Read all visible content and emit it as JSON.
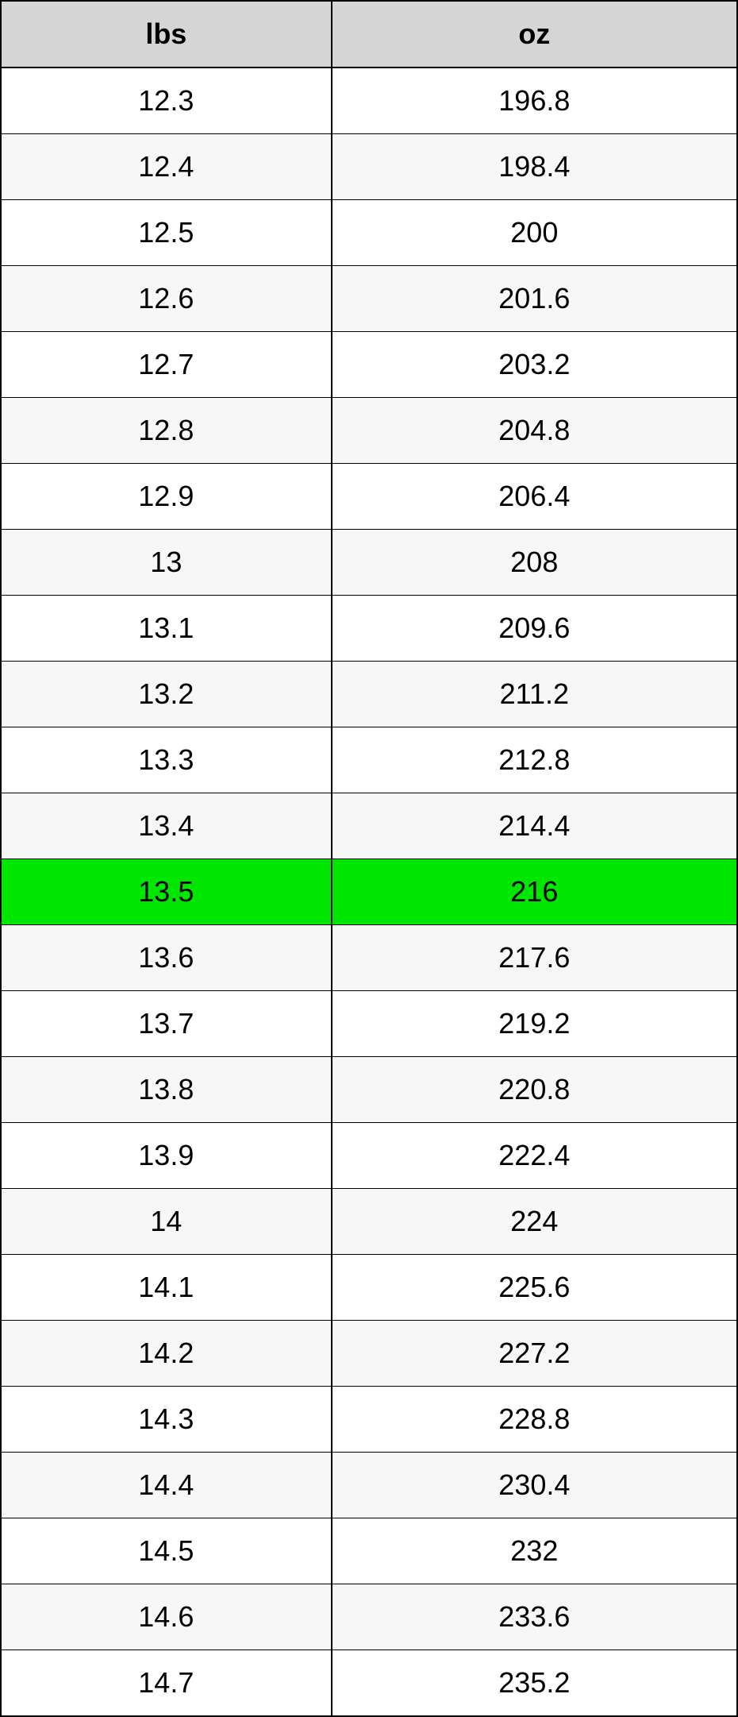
{
  "conversion_table": {
    "type": "table",
    "columns": [
      {
        "label": "lbs",
        "width": "50%",
        "align": "center"
      },
      {
        "label": "oz",
        "width": "50%",
        "align": "center"
      }
    ],
    "header_bg_color": "#d5d5d5",
    "header_fontsize": 36,
    "header_fontweight": "bold",
    "cell_fontsize": 36,
    "cell_fontweight": "normal",
    "border_color": "#000000",
    "outer_border_width": 2,
    "inner_border_width": 1,
    "highlight_color": "#00e600",
    "stripe_odd_color": "#ffffff",
    "stripe_even_color": "#f7f7f7",
    "text_color": "#000000",
    "rows": [
      {
        "lbs": "12.3",
        "oz": "196.8",
        "highlighted": false
      },
      {
        "lbs": "12.4",
        "oz": "198.4",
        "highlighted": false
      },
      {
        "lbs": "12.5",
        "oz": "200",
        "highlighted": false
      },
      {
        "lbs": "12.6",
        "oz": "201.6",
        "highlighted": false
      },
      {
        "lbs": "12.7",
        "oz": "203.2",
        "highlighted": false
      },
      {
        "lbs": "12.8",
        "oz": "204.8",
        "highlighted": false
      },
      {
        "lbs": "12.9",
        "oz": "206.4",
        "highlighted": false
      },
      {
        "lbs": "13",
        "oz": "208",
        "highlighted": false
      },
      {
        "lbs": "13.1",
        "oz": "209.6",
        "highlighted": false
      },
      {
        "lbs": "13.2",
        "oz": "211.2",
        "highlighted": false
      },
      {
        "lbs": "13.3",
        "oz": "212.8",
        "highlighted": false
      },
      {
        "lbs": "13.4",
        "oz": "214.4",
        "highlighted": false
      },
      {
        "lbs": "13.5",
        "oz": "216",
        "highlighted": true
      },
      {
        "lbs": "13.6",
        "oz": "217.6",
        "highlighted": false
      },
      {
        "lbs": "13.7",
        "oz": "219.2",
        "highlighted": false
      },
      {
        "lbs": "13.8",
        "oz": "220.8",
        "highlighted": false
      },
      {
        "lbs": "13.9",
        "oz": "222.4",
        "highlighted": false
      },
      {
        "lbs": "14",
        "oz": "224",
        "highlighted": false
      },
      {
        "lbs": "14.1",
        "oz": "225.6",
        "highlighted": false
      },
      {
        "lbs": "14.2",
        "oz": "227.2",
        "highlighted": false
      },
      {
        "lbs": "14.3",
        "oz": "228.8",
        "highlighted": false
      },
      {
        "lbs": "14.4",
        "oz": "230.4",
        "highlighted": false
      },
      {
        "lbs": "14.5",
        "oz": "232",
        "highlighted": false
      },
      {
        "lbs": "14.6",
        "oz": "233.6",
        "highlighted": false
      },
      {
        "lbs": "14.7",
        "oz": "235.2",
        "highlighted": false
      }
    ]
  }
}
